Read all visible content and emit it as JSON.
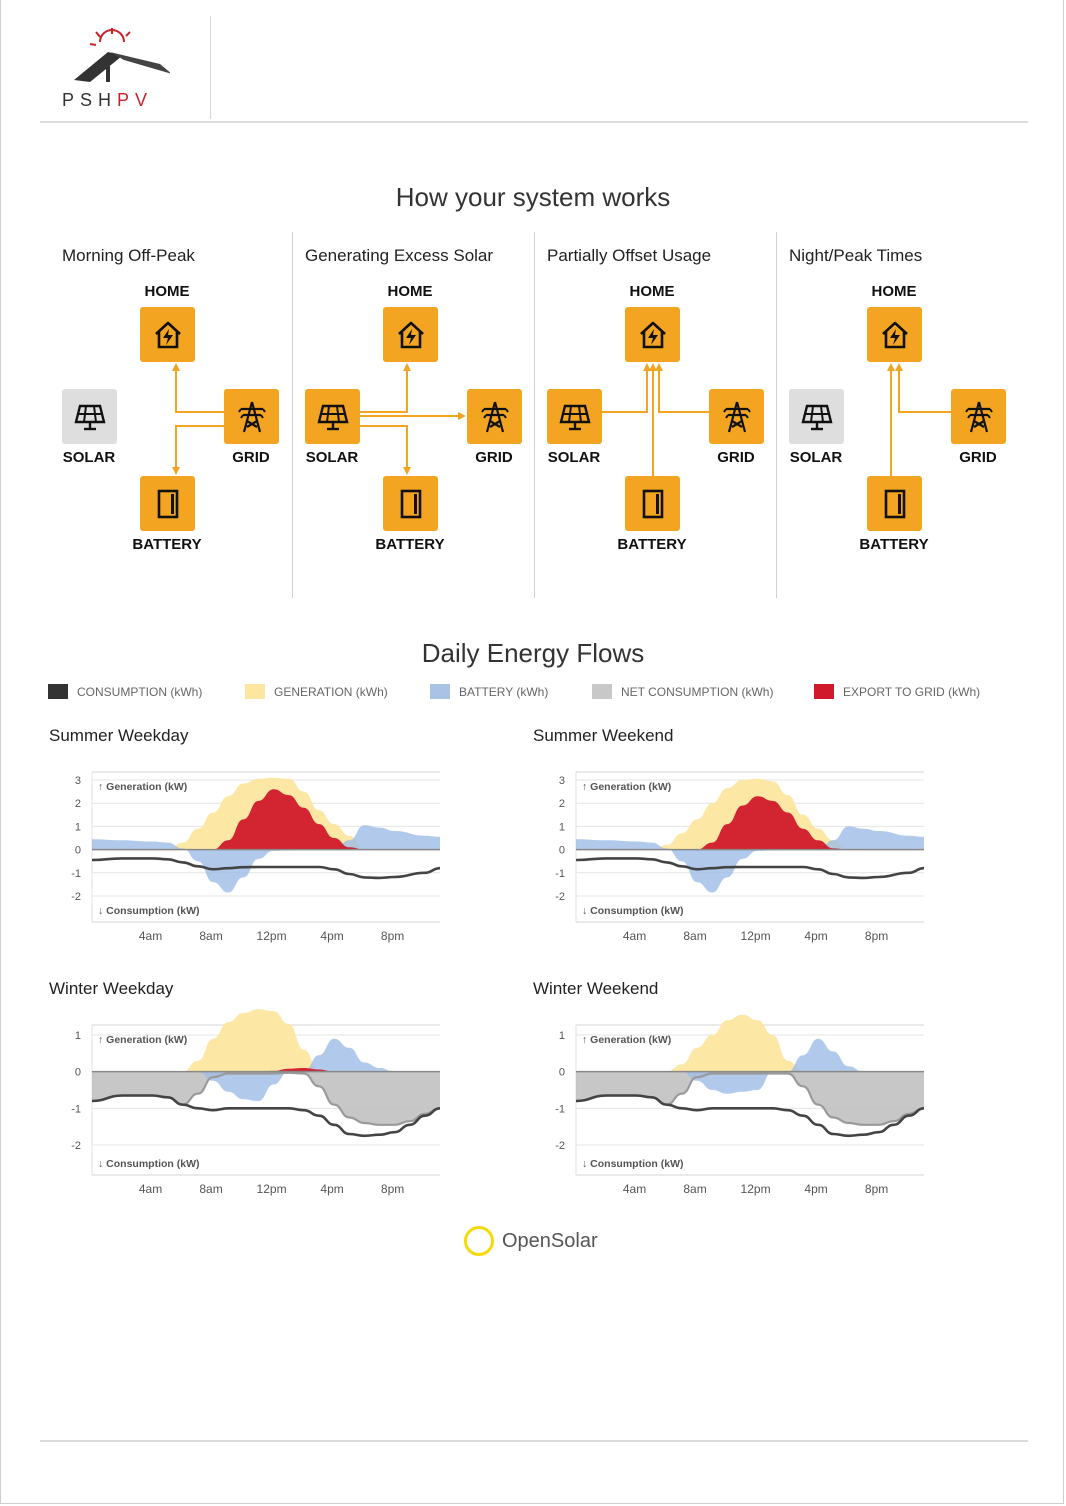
{
  "brand": {
    "logo_text_a": "PSH",
    "logo_text_b": "PV",
    "colors": {
      "orange": "#f3a521",
      "dark": "#333333",
      "red": "#c8232c"
    }
  },
  "how_it_works": {
    "title": "How your system works",
    "node_labels": {
      "home": "HOME",
      "solar": "SOLAR",
      "grid": "GRID",
      "battery": "BATTERY"
    },
    "scenarios": [
      {
        "id": "morning",
        "title": "Morning Off-Peak",
        "solar_active": false,
        "flows": [
          "grid-to-home",
          "grid-to-battery"
        ]
      },
      {
        "id": "excess",
        "title": "Generating Excess Solar",
        "solar_active": true,
        "flows": [
          "solar-to-home",
          "solar-to-grid",
          "solar-to-battery"
        ]
      },
      {
        "id": "partial",
        "title": "Partially Offset Usage",
        "solar_active": true,
        "flows": [
          "solar-to-home",
          "grid-to-home",
          "battery-to-home"
        ]
      },
      {
        "id": "night",
        "title": "Night/Peak Times",
        "solar_active": false,
        "flows": [
          "grid-to-home",
          "battery-to-home"
        ]
      }
    ]
  },
  "energy_flows": {
    "title": "Daily Energy Flows",
    "legend": [
      {
        "label": "CONSUMPTION (kWh)",
        "color": "#333333"
      },
      {
        "label": "GENERATION (kWh)",
        "color": "#fde6a0"
      },
      {
        "label": "BATTERY (kWh)",
        "color": "#a9c2e6"
      },
      {
        "label": "NET CONSUMPTION (kWh)",
        "color": "#c8c8c8"
      },
      {
        "label": "EXPORT TO GRID (kWh)",
        "color": "#d0192a"
      }
    ],
    "axis_text": {
      "gen_label": "↑ Generation (kW)",
      "cons_label": "↓ Consumption (kW)"
    }
  },
  "chart_data": [
    {
      "type": "area",
      "title": "Summer Weekday",
      "x_ticks": [
        "4am",
        "8am",
        "12pm",
        "4pm",
        "8pm"
      ],
      "y_ticks": [
        "3",
        "2",
        "1",
        "0",
        "-1",
        "-2"
      ],
      "ylim": [
        -2,
        3
      ],
      "x_hours": [
        0,
        2,
        4,
        5,
        6,
        7,
        8,
        9,
        10,
        11,
        12,
        13,
        14,
        15,
        16,
        17,
        18,
        19,
        20,
        22,
        23
      ],
      "series": [
        {
          "name": "GENERATION (kWh)",
          "values": [
            0,
            0,
            0,
            0,
            0.3,
            0.9,
            1.6,
            2.3,
            2.85,
            3.05,
            3.1,
            3.05,
            2.5,
            1.7,
            1.1,
            0.6,
            0.05,
            0,
            0,
            0,
            0
          ]
        },
        {
          "name": "EXPORT TO GRID (kWh)",
          "values": [
            0,
            0,
            0,
            0,
            0,
            0,
            0,
            0.4,
            1.3,
            2.1,
            2.6,
            2.35,
            1.8,
            1.1,
            0.5,
            0.1,
            0,
            0,
            0,
            0,
            0
          ]
        },
        {
          "name": "BATTERY (kWh)",
          "values": [
            0.45,
            0.4,
            0.35,
            0.3,
            0.05,
            -0.5,
            -1.4,
            -1.85,
            -1.2,
            -0.4,
            -0.05,
            -0.02,
            0,
            0,
            0,
            0.4,
            1.05,
            0.95,
            0.8,
            0.6,
            0.55
          ]
        },
        {
          "name": "CONSUMPTION (kWh)",
          "values": [
            -0.45,
            -0.38,
            -0.38,
            -0.42,
            -0.55,
            -0.72,
            -0.85,
            -0.8,
            -0.76,
            -0.75,
            -0.75,
            -0.75,
            -0.75,
            -0.75,
            -0.85,
            -1.05,
            -1.2,
            -1.22,
            -1.18,
            -1.0,
            -0.8
          ]
        }
      ]
    },
    {
      "type": "area",
      "title": "Summer Weekend",
      "x_ticks": [
        "4am",
        "8am",
        "12pm",
        "4pm",
        "8pm"
      ],
      "y_ticks": [
        "3",
        "2",
        "1",
        "0",
        "-1",
        "-2"
      ],
      "ylim": [
        -2,
        3
      ],
      "x_hours": [
        0,
        2,
        4,
        5,
        6,
        7,
        8,
        9,
        10,
        11,
        12,
        13,
        14,
        15,
        16,
        17,
        18,
        19,
        20,
        22,
        23
      ],
      "series": [
        {
          "name": "GENERATION (kWh)",
          "values": [
            0,
            0,
            0,
            0,
            0.2,
            0.7,
            1.3,
            2.0,
            2.65,
            3.0,
            3.05,
            2.95,
            2.35,
            1.5,
            0.9,
            0.4,
            0.05,
            0,
            0,
            0,
            0
          ]
        },
        {
          "name": "EXPORT TO GRID (kWh)",
          "values": [
            0,
            0,
            0,
            0,
            0,
            0,
            0,
            0.3,
            1.1,
            1.9,
            2.3,
            2.1,
            1.6,
            0.9,
            0.4,
            0.05,
            0,
            0,
            0,
            0,
            0
          ]
        },
        {
          "name": "BATTERY (kWh)",
          "values": [
            0.45,
            0.4,
            0.35,
            0.3,
            0.05,
            -0.5,
            -1.4,
            -1.85,
            -1.2,
            -0.4,
            -0.05,
            -0.02,
            0,
            0,
            0,
            0.4,
            1.0,
            0.9,
            0.8,
            0.6,
            0.55
          ]
        },
        {
          "name": "CONSUMPTION (kWh)",
          "values": [
            -0.45,
            -0.38,
            -0.38,
            -0.42,
            -0.55,
            -0.72,
            -0.85,
            -0.8,
            -0.76,
            -0.75,
            -0.75,
            -0.75,
            -0.75,
            -0.75,
            -0.85,
            -1.05,
            -1.2,
            -1.22,
            -1.18,
            -1.0,
            -0.8
          ]
        }
      ]
    },
    {
      "type": "area",
      "title": "Winter Weekday",
      "x_ticks": [
        "4am",
        "8am",
        "12pm",
        "4pm",
        "8pm"
      ],
      "y_ticks": [
        "1",
        "0",
        "-1",
        "-2"
      ],
      "ylim": [
        -2,
        2
      ],
      "x_hours": [
        0,
        2,
        4,
        5,
        6,
        7,
        8,
        9,
        10,
        11,
        12,
        13,
        14,
        15,
        16,
        17,
        18,
        19,
        20,
        21,
        22,
        23
      ],
      "series": [
        {
          "name": "GENERATION (kWh)",
          "values": [
            0,
            0,
            0,
            0,
            0,
            0.3,
            0.9,
            1.35,
            1.6,
            1.7,
            1.65,
            1.3,
            0.6,
            0.05,
            0,
            0,
            0,
            0,
            0,
            0,
            0,
            0
          ]
        },
        {
          "name": "EXPORT TO GRID (kWh)",
          "values": [
            0,
            0,
            0,
            0,
            0,
            0,
            0,
            0,
            0,
            0,
            0.02,
            0.08,
            0.1,
            0.06,
            0,
            0,
            0,
            0,
            0,
            0,
            0,
            0
          ]
        },
        {
          "name": "BATTERY (kWh)",
          "values": [
            0,
            0,
            0,
            0,
            0,
            0,
            -0.25,
            -0.55,
            -0.75,
            -0.8,
            -0.35,
            0,
            0,
            0.45,
            0.9,
            0.65,
            0.25,
            0.1,
            0,
            0,
            0,
            0
          ]
        },
        {
          "name": "NET CONSUMPTION (kWh)",
          "values": [
            -0.8,
            -0.65,
            -0.65,
            -0.7,
            -0.9,
            -0.6,
            -0.15,
            -0.05,
            -0.05,
            -0.05,
            -0.05,
            -0.03,
            -0.05,
            -0.4,
            -0.9,
            -1.25,
            -1.4,
            -1.45,
            -1.45,
            -1.35,
            -1.15,
            -1.0
          ]
        },
        {
          "name": "CONSUMPTION (kWh)",
          "values": [
            -0.8,
            -0.65,
            -0.65,
            -0.7,
            -0.9,
            -1.0,
            -1.05,
            -1.0,
            -1.0,
            -1.0,
            -1.0,
            -1.0,
            -1.05,
            -1.2,
            -1.45,
            -1.7,
            -1.75,
            -1.72,
            -1.65,
            -1.45,
            -1.2,
            -1.0
          ]
        }
      ]
    },
    {
      "type": "area",
      "title": "Winter Weekend",
      "x_ticks": [
        "4am",
        "8am",
        "12pm",
        "4pm",
        "8pm"
      ],
      "y_ticks": [
        "1",
        "0",
        "-1",
        "-2"
      ],
      "ylim": [
        -2,
        2
      ],
      "x_hours": [
        0,
        2,
        4,
        5,
        6,
        7,
        8,
        9,
        10,
        11,
        12,
        13,
        14,
        15,
        16,
        17,
        18,
        19,
        20,
        21,
        22,
        23
      ],
      "series": [
        {
          "name": "GENERATION (kWh)",
          "values": [
            0,
            0,
            0,
            0,
            0,
            0.2,
            0.65,
            1.0,
            1.4,
            1.55,
            1.4,
            1.0,
            0.3,
            0.02,
            0,
            0,
            0,
            0,
            0,
            0,
            0,
            0
          ]
        },
        {
          "name": "BATTERY (kWh)",
          "values": [
            0,
            0,
            0,
            0,
            0,
            0,
            -0.25,
            -0.5,
            -0.6,
            -0.55,
            -0.5,
            0,
            0,
            0.45,
            0.9,
            0.55,
            0.15,
            0,
            0,
            0,
            0,
            0
          ]
        },
        {
          "name": "NET CONSUMPTION (kWh)",
          "values": [
            -0.8,
            -0.65,
            -0.65,
            -0.7,
            -0.9,
            -0.6,
            -0.15,
            -0.05,
            -0.05,
            -0.05,
            -0.05,
            -0.05,
            -0.05,
            -0.4,
            -0.9,
            -1.25,
            -1.4,
            -1.45,
            -1.45,
            -1.35,
            -1.15,
            -1.0
          ]
        },
        {
          "name": "CONSUMPTION (kWh)",
          "values": [
            -0.8,
            -0.65,
            -0.65,
            -0.7,
            -0.9,
            -1.0,
            -1.05,
            -1.0,
            -1.0,
            -1.0,
            -1.0,
            -1.0,
            -1.05,
            -1.2,
            -1.45,
            -1.7,
            -1.75,
            -1.72,
            -1.65,
            -1.45,
            -1.2,
            -1.0
          ]
        }
      ]
    }
  ],
  "footer": {
    "brand": "OpenSolar"
  }
}
